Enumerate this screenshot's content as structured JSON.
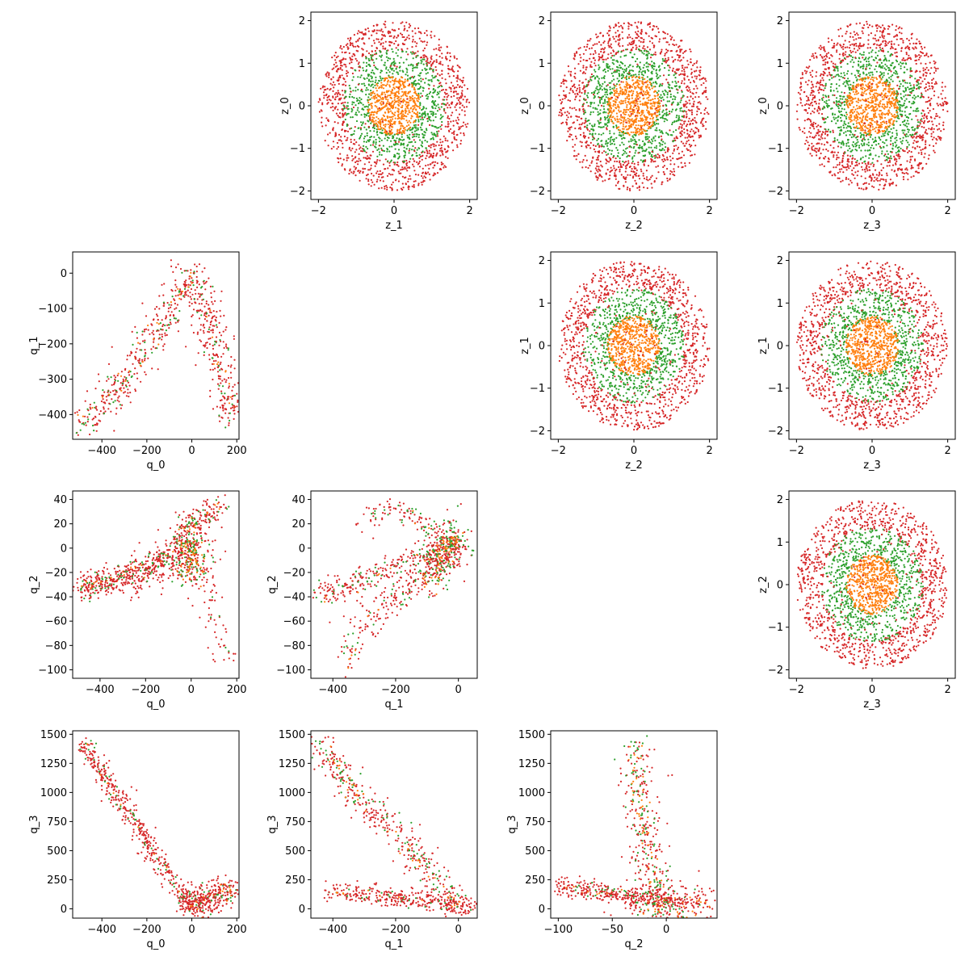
{
  "figure": {
    "type": "scatter-matrix"
  },
  "colors": {
    "outer": "#d62728",
    "middle": "#2ca02c",
    "inner": "#ff7f0e",
    "axes": "#000000"
  },
  "chart_data": [
    {
      "type": "scatter",
      "row": 0,
      "col": 1,
      "xlabel": "z_1",
      "ylabel": "z_0",
      "xlim": [
        -2.2,
        2.2
      ],
      "ylim": [
        -2.2,
        2.2
      ],
      "xticks": [
        -2,
        0,
        2
      ],
      "yticks": [
        -2,
        -1,
        0,
        1,
        2
      ],
      "pattern": "rings"
    },
    {
      "type": "scatter",
      "row": 0,
      "col": 2,
      "xlabel": "z_2",
      "ylabel": "z_0",
      "xlim": [
        -2.2,
        2.2
      ],
      "ylim": [
        -2.2,
        2.2
      ],
      "xticks": [
        -2,
        0,
        2
      ],
      "yticks": [
        -2,
        -1,
        0,
        1,
        2
      ],
      "pattern": "rings"
    },
    {
      "type": "scatter",
      "row": 0,
      "col": 3,
      "xlabel": "z_3",
      "ylabel": "z_0",
      "xlim": [
        -2.2,
        2.2
      ],
      "ylim": [
        -2.2,
        2.2
      ],
      "xticks": [
        -2,
        0,
        2
      ],
      "yticks": [
        -2,
        -1,
        0,
        1,
        2
      ],
      "pattern": "rings"
    },
    {
      "type": "scatter",
      "row": 1,
      "col": 2,
      "xlabel": "z_2",
      "ylabel": "z_1",
      "xlim": [
        -2.2,
        2.2
      ],
      "ylim": [
        -2.2,
        2.2
      ],
      "xticks": [
        -2,
        0,
        2
      ],
      "yticks": [
        -2,
        -1,
        0,
        1,
        2
      ],
      "pattern": "rings"
    },
    {
      "type": "scatter",
      "row": 1,
      "col": 3,
      "xlabel": "z_3",
      "ylabel": "z_1",
      "xlim": [
        -2.2,
        2.2
      ],
      "ylim": [
        -2.2,
        2.2
      ],
      "xticks": [
        -2,
        0,
        2
      ],
      "yticks": [
        -2,
        -1,
        0,
        1,
        2
      ],
      "pattern": "rings"
    },
    {
      "type": "scatter",
      "row": 2,
      "col": 3,
      "xlabel": "z_3",
      "ylabel": "z_2",
      "xlim": [
        -2.2,
        2.2
      ],
      "ylim": [
        -2.2,
        2.2
      ],
      "xticks": [
        -2,
        0,
        2
      ],
      "yticks": [
        -2,
        -1,
        0,
        1,
        2
      ],
      "pattern": "rings"
    },
    {
      "type": "scatter",
      "row": 1,
      "col": 0,
      "xlabel": "q_0",
      "ylabel": "q_1",
      "xlim": [
        -530,
        210
      ],
      "ylim": [
        -470,
        60
      ],
      "xticks": [
        -400,
        -200,
        0,
        200
      ],
      "yticks": [
        -400,
        -300,
        -200,
        -100,
        0
      ],
      "pattern": "polylines",
      "arms": [
        {
          "points": [
            [
              -490,
              -440
            ],
            [
              -400,
              -370
            ],
            [
              -300,
              -300
            ],
            [
              -150,
              -150
            ],
            [
              -50,
              -60
            ],
            [
              0,
              0
            ]
          ],
          "spread": 12,
          "n_outer": 220,
          "n_middle": 70,
          "n_inner": 25
        },
        {
          "points": [
            [
              0,
              0
            ],
            [
              60,
              -100
            ],
            [
              120,
              -250
            ],
            [
              175,
              -410
            ]
          ],
          "spread": 10,
          "n_outer": 200,
          "n_middle": 35,
          "n_inner": 15
        }
      ]
    },
    {
      "type": "scatter",
      "row": 2,
      "col": 0,
      "xlabel": "q_0",
      "ylabel": "q_2",
      "xlim": [
        -520,
        210
      ],
      "ylim": [
        -107,
        47
      ],
      "xticks": [
        -400,
        -200,
        0,
        200
      ],
      "yticks": [
        -100,
        -80,
        -60,
        -40,
        -20,
        0,
        20,
        40
      ],
      "pattern": "polylines",
      "arms": [
        {
          "points": [
            [
              -480,
              -35
            ],
            [
              -350,
              -25
            ],
            [
              -200,
              -15
            ],
            [
              -100,
              -5
            ],
            [
              0,
              5
            ]
          ],
          "spread": 8,
          "n_outer": 200,
          "n_middle": 60,
          "n_inner": 20
        },
        {
          "points": [
            [
              -480,
              -30
            ],
            [
              -300,
              -28
            ],
            [
              -150,
              -20
            ],
            [
              -30,
              -10
            ],
            [
              50,
              -30
            ],
            [
              100,
              -60
            ],
            [
              150,
              -95
            ]
          ],
          "spread": 10,
          "n_outer": 180,
          "n_middle": 25,
          "n_inner": 5
        },
        {
          "points": [
            [
              -50,
              10
            ],
            [
              0,
              20
            ],
            [
              50,
              25
            ],
            [
              120,
              35
            ]
          ],
          "spread": 8,
          "n_outer": 80,
          "n_middle": 30,
          "n_inner": 10
        },
        {
          "points": [
            [
              0,
              -20
            ],
            [
              0,
              10
            ]
          ],
          "spread": 15,
          "n_outer": 100,
          "n_middle": 80,
          "n_inner": 60
        }
      ]
    },
    {
      "type": "scatter",
      "row": 2,
      "col": 1,
      "xlabel": "q_1",
      "ylabel": "q_2",
      "xlim": [
        -470,
        60
      ],
      "ylim": [
        -107,
        47
      ],
      "xticks": [
        -400,
        -200,
        0
      ],
      "yticks": [
        -100,
        -80,
        -60,
        -40,
        -20,
        0,
        20,
        40
      ],
      "pattern": "polylines",
      "arms": [
        {
          "points": [
            [
              -440,
              -40
            ],
            [
              -300,
              -25
            ],
            [
              -200,
              -15
            ],
            [
              -100,
              -5
            ],
            [
              0,
              0
            ]
          ],
          "spread": 8,
          "n_outer": 170,
          "n_middle": 50,
          "n_inner": 10
        },
        {
          "points": [
            [
              -350,
              -95
            ],
            [
              -300,
              -60
            ],
            [
              -200,
              -40
            ],
            [
              -100,
              -20
            ],
            [
              0,
              0
            ]
          ],
          "spread": 10,
          "n_outer": 160,
          "n_middle": 40,
          "n_inner": 10
        },
        {
          "points": [
            [
              -300,
              20
            ],
            [
              -200,
              35
            ],
            [
              -100,
              20
            ],
            [
              0,
              5
            ]
          ],
          "spread": 8,
          "n_outer": 70,
          "n_middle": 30,
          "n_inner": 5
        },
        {
          "points": [
            [
              -100,
              -30
            ],
            [
              -50,
              0
            ],
            [
              0,
              10
            ]
          ],
          "spread": 15,
          "n_outer": 100,
          "n_middle": 100,
          "n_inner": 60
        }
      ]
    },
    {
      "type": "scatter",
      "row": 3,
      "col": 0,
      "xlabel": "q_0",
      "ylabel": "q_3",
      "xlim": [
        -530,
        210
      ],
      "ylim": [
        -80,
        1530
      ],
      "xticks": [
        -400,
        -200,
        0,
        200
      ],
      "yticks": [
        0,
        250,
        500,
        750,
        1000,
        1250,
        1500
      ],
      "pattern": "polylines",
      "arms": [
        {
          "points": [
            [
              -490,
              1440
            ],
            [
              -300,
              880
            ],
            [
              -150,
              430
            ],
            [
              0,
              0
            ]
          ],
          "spread": 6,
          "n_outer": 300,
          "n_middle": 50,
          "n_inner": 10
        },
        {
          "points": [
            [
              0,
              0
            ],
            [
              60,
              100
            ],
            [
              120,
              130
            ],
            [
              180,
              150
            ]
          ],
          "spread": 10,
          "n_outer": 200,
          "n_middle": 30,
          "n_inner": 20
        }
      ]
    },
    {
      "type": "scatter",
      "row": 3,
      "col": 1,
      "xlabel": "q_1",
      "ylabel": "q_3",
      "xlim": [
        -470,
        60
      ],
      "ylim": [
        -80,
        1530
      ],
      "xticks": [
        -400,
        -200,
        0
      ],
      "yticks": [
        0,
        250,
        500,
        750,
        1000,
        1250,
        1500
      ],
      "pattern": "polylines",
      "arms": [
        {
          "points": [
            [
              -440,
              1420
            ],
            [
              -300,
              900
            ],
            [
              -200,
              650
            ],
            [
              -120,
              400
            ],
            [
              -50,
              150
            ],
            [
              0,
              0
            ]
          ],
          "spread": 10,
          "n_outer": 230,
          "n_middle": 90,
          "n_inner": 40
        },
        {
          "points": [
            [
              -420,
              150
            ],
            [
              -300,
              120
            ],
            [
              -200,
              100
            ],
            [
              -100,
              70
            ],
            [
              0,
              30
            ],
            [
              50,
              0
            ]
          ],
          "spread": 6,
          "n_outer": 230,
          "n_middle": 25,
          "n_inner": 10
        }
      ]
    },
    {
      "type": "scatter",
      "row": 3,
      "col": 2,
      "xlabel": "q_2",
      "ylabel": "q_3",
      "xlim": [
        -107,
        47
      ],
      "ylim": [
        -80,
        1530
      ],
      "xticks": [
        -100,
        -50,
        0
      ],
      "yticks": [
        0,
        250,
        500,
        750,
        1000,
        1250,
        1500
      ],
      "pattern": "polylines",
      "arms": [
        {
          "points": [
            [
              -100,
              190
            ],
            [
              -60,
              150
            ],
            [
              -30,
              100
            ],
            [
              0,
              60
            ],
            [
              40,
              50
            ]
          ],
          "spread": 6,
          "n_outer": 260,
          "n_middle": 30,
          "n_inner": 15
        },
        {
          "points": [
            [
              -30,
              1400
            ],
            [
              -25,
              1000
            ],
            [
              -20,
              700
            ],
            [
              -15,
              400
            ],
            [
              -10,
              200
            ],
            [
              0,
              0
            ]
          ],
          "spread": 12,
          "n_outer": 150,
          "n_middle": 90,
          "n_inner": 50
        },
        {
          "points": [
            [
              -30,
              20
            ],
            [
              0,
              0
            ],
            [
              30,
              20
            ]
          ],
          "spread": 20,
          "n_outer": 100,
          "n_middle": 40,
          "n_inner": 20
        }
      ]
    }
  ]
}
